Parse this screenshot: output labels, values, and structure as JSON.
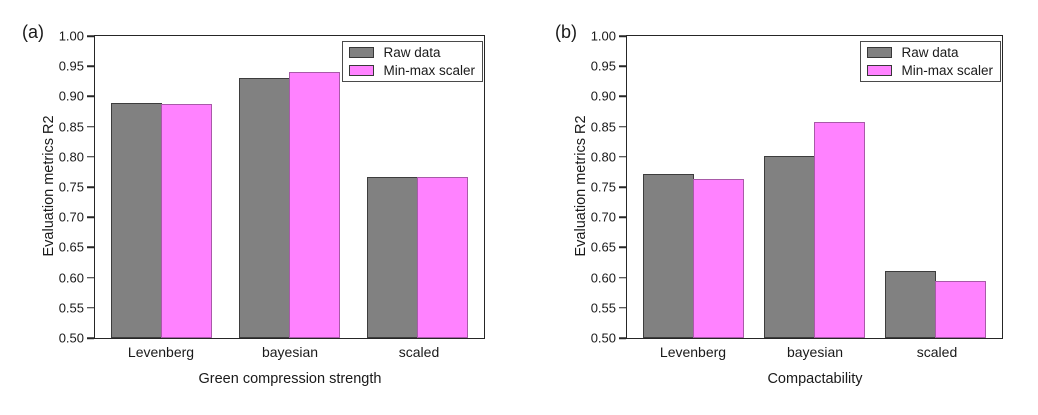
{
  "colors": {
    "raw_fill": "#818181",
    "raw_border": "#3d3d3d",
    "minmax_fill": "#ff82ff",
    "minmax_border": "#a85aa8",
    "frame": "#262626",
    "text": "#1a1a1a"
  },
  "chart_data": [
    {
      "type": "bar",
      "panel_label": "(a)",
      "xlabel": "Green compression strength",
      "ylabel": "Evaluation metrics R2",
      "ylim": [
        0.5,
        1.0
      ],
      "yticks": [
        "1.00",
        "0.95",
        "0.90",
        "0.85",
        "0.80",
        "0.75",
        "0.70",
        "0.65",
        "0.60",
        "0.55",
        "0.50"
      ],
      "grid": false,
      "legend_position": "top-right",
      "categories": [
        "Levenberg",
        "bayesian",
        "scaled"
      ],
      "series": [
        {
          "name": "Raw data",
          "key": "raw",
          "values": [
            0.889,
            0.93,
            0.766
          ]
        },
        {
          "name": "Min-max scaler",
          "key": "minmax",
          "values": [
            0.887,
            0.941,
            0.766
          ]
        }
      ]
    },
    {
      "type": "bar",
      "panel_label": "(b)",
      "xlabel": "Compactability",
      "ylabel": "Evaluation metrics R2",
      "ylim": [
        0.5,
        1.0
      ],
      "yticks": [
        "1.00",
        "0.95",
        "0.90",
        "0.85",
        "0.80",
        "0.75",
        "0.70",
        "0.65",
        "0.60",
        "0.55",
        "0.50"
      ],
      "grid": false,
      "legend_position": "top-right",
      "categories": [
        "Levenberg",
        "bayesian",
        "scaled"
      ],
      "series": [
        {
          "name": "Raw data",
          "key": "raw",
          "values": [
            0.772,
            0.802,
            0.611
          ]
        },
        {
          "name": "Min-max scaler",
          "key": "minmax",
          "values": [
            0.764,
            0.857,
            0.594
          ]
        }
      ]
    }
  ]
}
